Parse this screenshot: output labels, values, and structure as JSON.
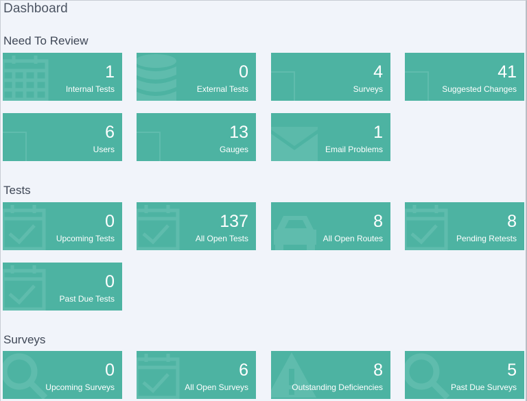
{
  "page": {
    "title": "Dashboard"
  },
  "colors": {
    "tile": "#4db3a2",
    "tile_icon": "#5fbcad",
    "background": "#f1f4fa"
  },
  "sections": [
    {
      "title": "Need To Review",
      "tiles": [
        {
          "count": "1",
          "label": "Internal Tests",
          "icon": "calendar-icon"
        },
        {
          "count": "0",
          "label": "External Tests",
          "icon": "database-icon"
        },
        {
          "count": "4",
          "label": "Surveys",
          "icon": "document-icon"
        },
        {
          "count": "41",
          "label": "Suggested Changes",
          "icon": "document-icon"
        },
        {
          "count": "6",
          "label": "Users",
          "icon": "document-icon"
        },
        {
          "count": "13",
          "label": "Gauges",
          "icon": "document-icon"
        },
        {
          "count": "1",
          "label": "Email Problems",
          "icon": "envelope-icon"
        }
      ]
    },
    {
      "title": "Tests",
      "tiles": [
        {
          "count": "0",
          "label": "Upcoming Tests",
          "icon": "calendar-check-icon"
        },
        {
          "count": "137",
          "label": "All Open Tests",
          "icon": "calendar-check-icon"
        },
        {
          "count": "8",
          "label": "All Open Routes",
          "icon": "car-icon"
        },
        {
          "count": "8",
          "label": "Pending Retests",
          "icon": "calendar-check-icon"
        },
        {
          "count": "0",
          "label": "Past Due Tests",
          "icon": "calendar-check-icon"
        }
      ]
    },
    {
      "title": "Surveys",
      "tiles": [
        {
          "count": "0",
          "label": "Upcoming Surveys",
          "icon": "search-icon"
        },
        {
          "count": "6",
          "label": "All Open Surveys",
          "icon": "calendar-check-icon"
        },
        {
          "count": "8",
          "label": "Outstanding Deficiencies",
          "icon": "warning-icon"
        },
        {
          "count": "5",
          "label": "Past Due Surveys",
          "icon": "search-icon"
        }
      ]
    }
  ]
}
